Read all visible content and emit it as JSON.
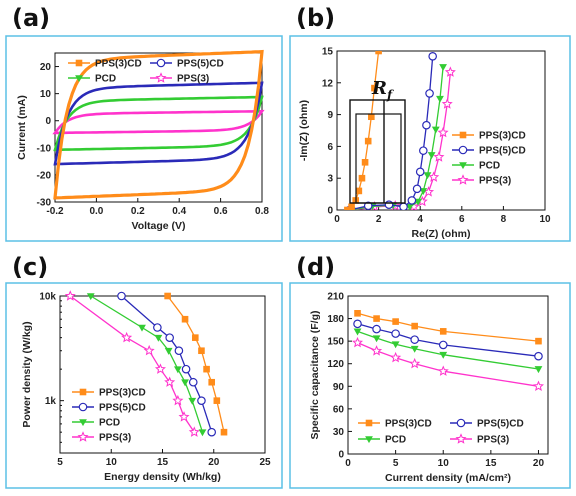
{
  "colors": {
    "PPS(3)CD": "#ff8c1a",
    "PPS(5)CD": "#2a2ab8",
    "PCD": "#33cc33",
    "PPS(3)": "#ff33cc",
    "frame": "#5bc0e6"
  },
  "chart_data": [
    {
      "panel": "(a)",
      "type": "line",
      "xlabel": "Voltage (V)",
      "ylabel": "Current (mA)",
      "xlim": [
        -0.2,
        0.8
      ],
      "ylim": [
        -30,
        25
      ],
      "xticks": [
        "-0.2",
        "0.0",
        "0.2",
        "0.4",
        "0.6",
        "0.8"
      ],
      "yticks": [
        "-30",
        "-20",
        "-10",
        "0",
        "10",
        "20"
      ],
      "legend_position": "top",
      "series": [
        {
          "name": "PPS(3)CD",
          "marker": "square",
          "upper": 24,
          "lower": -27,
          "tilt": 3
        },
        {
          "name": "PPS(5)CD",
          "marker": "circle",
          "upper": 13,
          "lower": -15,
          "tilt": 2
        },
        {
          "name": "PCD",
          "marker": "triangle-down",
          "upper": 8,
          "lower": -10,
          "tilt": 1.5
        },
        {
          "name": "PPS(3)",
          "marker": "star",
          "upper": 3,
          "lower": -4,
          "tilt": 1
        }
      ]
    },
    {
      "panel": "(b)",
      "type": "scatter",
      "xlabel": "Re(Z) (ohm)",
      "ylabel": "-Im(Z) (ohm)",
      "xlim": [
        0,
        10
      ],
      "ylim": [
        0,
        15
      ],
      "xticks": [
        "0",
        "2",
        "4",
        "6",
        "8",
        "10"
      ],
      "yticks": [
        "0",
        "3",
        "6",
        "9",
        "12",
        "15"
      ],
      "legend_position": "lower-right",
      "annotation": {
        "main": "R",
        "sub": "f"
      },
      "series": [
        {
          "name": "PPS(3)CD",
          "marker": "square",
          "x": [
            0.5,
            0.7,
            0.9,
            1.05,
            1.2,
            1.35,
            1.5,
            1.65,
            1.8,
            2.0
          ],
          "y": [
            0,
            0.3,
            0.9,
            1.8,
            3,
            4.5,
            6.5,
            8.8,
            11.5,
            15
          ]
        },
        {
          "name": "PPS(5)CD",
          "marker": "circle",
          "x": [
            0.6,
            1.5,
            2.5,
            3.2,
            3.6,
            3.85,
            4.0,
            4.15,
            4.3,
            4.45,
            4.6
          ],
          "y": [
            0,
            0.4,
            0.5,
            0.3,
            0.9,
            2,
            3.6,
            5.6,
            8,
            11,
            14.5
          ]
        },
        {
          "name": "PCD",
          "marker": "triangle-down",
          "x": [
            0.7,
            1.7,
            2.7,
            3.5,
            3.9,
            4.15,
            4.35,
            4.55,
            4.75,
            4.95,
            5.1
          ],
          "y": [
            0,
            0.35,
            0.45,
            0.3,
            0.8,
            1.8,
            3.3,
            5.2,
            7.6,
            10.5,
            13.5
          ]
        },
        {
          "name": "PPS(3)",
          "marker": "star",
          "x": [
            0.8,
            1.8,
            2.8,
            3.7,
            4.1,
            4.4,
            4.65,
            4.9,
            5.1,
            5.3,
            5.45
          ],
          "y": [
            0,
            0.3,
            0.4,
            0.3,
            0.8,
            1.7,
            3.1,
            5,
            7.3,
            10,
            13
          ]
        }
      ]
    },
    {
      "panel": "(c)",
      "type": "line",
      "xlabel": "Energy density (Wh/kg)",
      "ylabel": "Power density (W/kg)",
      "xlim": [
        5,
        25
      ],
      "ylim_log10": [
        2.5,
        4.0
      ],
      "xticks": [
        "5",
        "10",
        "15",
        "20",
        "25"
      ],
      "yticks": [
        "1k",
        "10k"
      ],
      "legend_position": "lower-left",
      "series": [
        {
          "name": "PPS(3)CD",
          "marker": "square",
          "x": [
            15.5,
            17.2,
            18.2,
            18.8,
            19.3,
            19.8,
            20.3,
            21.0
          ],
          "y": [
            10000,
            6000,
            4000,
            3000,
            2000,
            1500,
            1000,
            500
          ]
        },
        {
          "name": "PPS(5)CD",
          "marker": "circle",
          "x": [
            11,
            14.5,
            15.7,
            16.6,
            17.3,
            18.0,
            18.8,
            19.8
          ],
          "y": [
            10000,
            5000,
            4000,
            3000,
            2000,
            1500,
            1000,
            500
          ]
        },
        {
          "name": "PCD",
          "marker": "triangle-down",
          "x": [
            8,
            13,
            14.6,
            15.6,
            16.5,
            17.2,
            17.9,
            18.9
          ],
          "y": [
            10000,
            5000,
            4000,
            3000,
            2000,
            1500,
            1000,
            500
          ]
        },
        {
          "name": "PPS(3)",
          "marker": "star",
          "x": [
            6,
            11.5,
            13.7,
            14.8,
            15.7,
            16.5,
            17.1,
            18.1
          ],
          "y": [
            10000,
            4000,
            3000,
            2000,
            1500,
            1000,
            700,
            500
          ]
        }
      ]
    },
    {
      "panel": "(d)",
      "type": "line",
      "xlabel": "Current density (mA/cm²)",
      "ylabel": "Specific capacitance (F/g)",
      "xlim": [
        0,
        21
      ],
      "ylim": [
        0,
        210
      ],
      "xticks": [
        "0",
        "5",
        "10",
        "15",
        "20"
      ],
      "yticks": [
        "0",
        "30",
        "60",
        "90",
        "120",
        "150",
        "180",
        "210"
      ],
      "legend_position": "bottom",
      "series": [
        {
          "name": "PPS(3)CD",
          "marker": "square",
          "x": [
            1,
            3,
            5,
            7,
            10,
            20
          ],
          "y": [
            187,
            180,
            176,
            170,
            163,
            150
          ]
        },
        {
          "name": "PPS(5)CD",
          "marker": "circle",
          "x": [
            1,
            3,
            5,
            7,
            10,
            20
          ],
          "y": [
            173,
            166,
            160,
            152,
            145,
            130
          ]
        },
        {
          "name": "PCD",
          "marker": "triangle-down",
          "x": [
            1,
            3,
            5,
            7,
            10,
            20
          ],
          "y": [
            163,
            154,
            146,
            140,
            132,
            113
          ]
        },
        {
          "name": "PPS(3)",
          "marker": "star",
          "x": [
            1,
            3,
            5,
            7,
            10,
            20
          ],
          "y": [
            148,
            137,
            128,
            120,
            110,
            90
          ]
        }
      ]
    }
  ]
}
